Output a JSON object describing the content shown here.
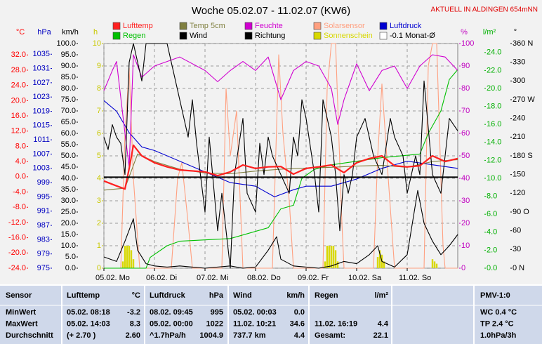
{
  "chart_data": {
    "type": "line",
    "title": "Woche 05.02.07 - 11.02.07 (KW6)",
    "annotation": "AKTUELL IN ALDINGEN 654mNN",
    "xlim": [
      0,
      168
    ],
    "xticks": [
      {
        "value": 0,
        "label": "05.02. Mo"
      },
      {
        "value": 24,
        "label": "06.02. Di"
      },
      {
        "value": 48,
        "label": "07.02. Mi"
      },
      {
        "value": 72,
        "label": "08.02. Do"
      },
      {
        "value": 96,
        "label": "09.02. Fr"
      },
      {
        "value": 120,
        "label": "10.02. Sa"
      },
      {
        "value": 144,
        "label": "11.02. So"
      }
    ],
    "grid": true,
    "axes": [
      {
        "unit": "°C",
        "side": "left",
        "color": "#ff0000",
        "lim": [
          -24,
          35
        ],
        "ticks": [
          {
            "value": 32,
            "label": "32.0"
          },
          {
            "value": 28,
            "label": "28.0"
          },
          {
            "value": 24,
            "label": "24.0"
          },
          {
            "value": 20,
            "label": "20.0"
          },
          {
            "value": 16,
            "label": "16.0"
          },
          {
            "value": 12,
            "label": "12.0"
          },
          {
            "value": 8,
            "label": "8.0"
          },
          {
            "value": 4,
            "label": "4.0"
          },
          {
            "value": 0,
            "label": "0.0"
          },
          {
            "value": -4,
            "label": "-4.0"
          },
          {
            "value": -8,
            "label": "-8.0"
          },
          {
            "value": -12,
            "label": "-12.0"
          },
          {
            "value": -16,
            "label": "-16.0"
          },
          {
            "value": -20,
            "label": "-20.0"
          },
          {
            "value": -24,
            "label": "-24.0"
          }
        ]
      },
      {
        "unit": "hPa",
        "side": "left",
        "color": "#0000c0",
        "lim": [
          975,
          1038
        ],
        "ticks": [
          1035,
          1031,
          1027,
          1023,
          1019,
          1015,
          1011,
          1007,
          1003,
          999,
          995,
          991,
          987,
          983,
          979,
          975
        ]
      },
      {
        "unit": "km/h",
        "side": "left",
        "color": "#000000",
        "lim": [
          0,
          100
        ],
        "ticks": [
          {
            "value": 100,
            "label": "100.0"
          },
          {
            "value": 95,
            "label": "95.0"
          },
          {
            "value": 90,
            "label": "90.0"
          },
          {
            "value": 85,
            "label": "85.0"
          },
          {
            "value": 80,
            "label": "80.0"
          },
          {
            "value": 75,
            "label": "75.0"
          },
          {
            "value": 70,
            "label": "70.0"
          },
          {
            "value": 65,
            "label": "65.0"
          },
          {
            "value": 60,
            "label": "60.0"
          },
          {
            "value": 55,
            "label": "55.0"
          },
          {
            "value": 50,
            "label": "50.0"
          },
          {
            "value": 45,
            "label": "45.0"
          },
          {
            "value": 40,
            "label": "40.0"
          },
          {
            "value": 35,
            "label": "35.0"
          },
          {
            "value": 30,
            "label": "30.0"
          },
          {
            "value": 25,
            "label": "25.0"
          },
          {
            "value": 20,
            "label": "20.0"
          },
          {
            "value": 15,
            "label": "15.0"
          },
          {
            "value": 10,
            "label": "10.0"
          },
          {
            "value": 5,
            "label": "5.0"
          },
          {
            "value": 0,
            "label": "0.0"
          }
        ]
      },
      {
        "unit": "h",
        "side": "left",
        "color": "#c8c800",
        "lim": [
          0,
          10
        ],
        "grid": true,
        "ticks": [
          10,
          9,
          8,
          7,
          6,
          5,
          4,
          3,
          2,
          1,
          0
        ]
      },
      {
        "unit": "%",
        "side": "right",
        "color": "#c000c0",
        "lim": [
          0,
          100
        ],
        "ticks": [
          100,
          90,
          80,
          70,
          60,
          50,
          40,
          30,
          20,
          10,
          0
        ]
      },
      {
        "unit": "l/m²",
        "side": "right",
        "color": "#00b000",
        "lim": [
          0,
          25
        ],
        "ticks": [
          {
            "value": 24,
            "label": "24.0"
          },
          {
            "value": 22,
            "label": "22.0"
          },
          {
            "value": 20,
            "label": "20.0"
          },
          {
            "value": 18,
            "label": "18.0"
          },
          {
            "value": 16,
            "label": "16.0"
          },
          {
            "value": 14,
            "label": "14.0"
          },
          {
            "value": 12,
            "label": "12.0"
          },
          {
            "value": 10,
            "label": "10.0"
          },
          {
            "value": 8,
            "label": "8.0"
          },
          {
            "value": 6,
            "label": "6.0"
          },
          {
            "value": 4,
            "label": "4.0"
          },
          {
            "value": 2,
            "label": "2.0"
          },
          {
            "value": 0,
            "label": "0.0"
          }
        ]
      },
      {
        "unit": "°",
        "side": "right",
        "color": "#000000",
        "lim": [
          0,
          360
        ],
        "ticks": [
          {
            "value": 360,
            "label": "360 N"
          },
          330,
          300,
          {
            "value": 270,
            "label": "270 W"
          },
          240,
          210,
          {
            "value": 180,
            "label": "180 S"
          },
          150,
          120,
          {
            "value": 90,
            "label": "90 O"
          },
          60,
          30,
          {
            "value": 0,
            "label": "0 N"
          }
        ]
      }
    ],
    "series": [
      {
        "name": "Lufttemp",
        "color": "#ff2020",
        "axis": "°C",
        "x": [
          0,
          6,
          10,
          12,
          14,
          18,
          24,
          30,
          36,
          48,
          54,
          60,
          66,
          72,
          78,
          84,
          90,
          96,
          102,
          108,
          114,
          120,
          126,
          132,
          138,
          144,
          150,
          156,
          162,
          168
        ],
        "values": [
          -1.1,
          -2.4,
          -3.2,
          2.2,
          8.3,
          5.5,
          3.7,
          2.6,
          1.8,
          1.3,
          0.3,
          1.3,
          3.1,
          2.2,
          2.6,
          2.7,
          0.7,
          2.2,
          2.6,
          3.1,
          1.1,
          3.7,
          4.8,
          5.5,
          2.9,
          2.6,
          2.9,
          5.5,
          4.0,
          4.8
        ]
      },
      {
        "name": "Temp 5cm",
        "color": "#808040",
        "axis": "°C",
        "x": [
          0,
          10,
          16,
          24,
          36,
          48,
          60,
          72,
          84,
          96,
          108,
          120,
          132,
          144,
          156,
          168
        ],
        "values": [
          -3.5,
          -3.0,
          6.0,
          4.0,
          2.0,
          1.0,
          0.8,
          1.5,
          2.0,
          2.3,
          2.5,
          2.8,
          3.0,
          2.5,
          4.0,
          4.5
        ]
      },
      {
        "name": "Feuchte",
        "color": "#d000d0",
        "axis": "%",
        "x": [
          0,
          4,
          6,
          10,
          12,
          14,
          18,
          24,
          36,
          48,
          54,
          60,
          66,
          72,
          78,
          84,
          90,
          96,
          102,
          108,
          111,
          114,
          120,
          126,
          132,
          138,
          144,
          150,
          156,
          162,
          168
        ],
        "values": [
          79,
          88,
          92,
          60,
          45,
          95,
          85,
          90,
          94,
          88,
          83,
          88,
          92,
          88,
          94,
          75,
          88,
          92,
          90,
          80,
          64,
          75,
          91,
          79,
          88,
          90,
          80,
          90,
          95,
          94,
          88
        ]
      },
      {
        "name": "Solarsensor",
        "color": "#ffa080",
        "axis": "%",
        "x": [
          0,
          8,
          10,
          12,
          14,
          17,
          32,
          35,
          37,
          40,
          42,
          56,
          58,
          60,
          63,
          66,
          80,
          83,
          85,
          88,
          90,
          104,
          106,
          108,
          110,
          113,
          114,
          128,
          130,
          132,
          135,
          138,
          152,
          154,
          156,
          158,
          161,
          162,
          168
        ],
        "values": [
          0,
          0,
          60,
          89,
          40,
          0,
          0,
          40,
          47,
          20,
          0,
          0,
          80,
          50,
          70,
          0,
          0,
          95,
          60,
          30,
          0,
          0,
          80,
          100,
          100,
          20,
          0,
          0,
          50,
          82,
          40,
          0,
          0,
          90,
          100,
          100,
          10,
          0,
          0
        ]
      },
      {
        "name": "Luftdruck",
        "color": "#0000d0",
        "axis": "hPa",
        "x": [
          0,
          6,
          12,
          18,
          24,
          36,
          48,
          60,
          72,
          81,
          90,
          96,
          108,
          120,
          132,
          144,
          156,
          168
        ],
        "values": [
          1022,
          1019,
          1013,
          1009,
          1008,
          1005,
          1002,
          999,
          998,
          995,
          997,
          998,
          998,
          1000,
          1003,
          1005,
          1004,
          1003
        ]
      },
      {
        "name": "Regen",
        "color": "#00c000",
        "axis": "l/m²",
        "x": [
          0,
          20,
          22,
          30,
          36,
          60,
          78,
          84,
          90,
          94,
          100,
          108,
          120,
          132,
          150,
          154,
          160,
          164,
          168
        ],
        "values": [
          0,
          0,
          1.2,
          2.5,
          3.0,
          3.3,
          4.5,
          6.6,
          7.0,
          10.0,
          11.0,
          11.5,
          11.9,
          12.3,
          12.7,
          15.0,
          17.5,
          21.0,
          22.1
        ]
      },
      {
        "name": "Wind",
        "color": "#000000",
        "axis": "km/h",
        "x": [
          0,
          6,
          10,
          14,
          16,
          20,
          24,
          30,
          36,
          42,
          48,
          60,
          66,
          72,
          78,
          82,
          84,
          90,
          96,
          102,
          108,
          114,
          120,
          126,
          130,
          132,
          138,
          144,
          149,
          152,
          156,
          160,
          164,
          168
        ],
        "values": [
          5,
          3,
          12,
          22,
          8,
          2,
          1,
          0.5,
          1,
          0.5,
          0,
          1,
          0,
          0.5,
          8,
          14,
          4,
          1,
          0.5,
          0,
          1,
          3,
          2,
          6,
          10,
          3,
          0.5,
          6,
          34.6,
          20,
          12,
          6,
          10,
          15
        ]
      },
      {
        "name": "Richtung",
        "color": "#000000",
        "axis": "°",
        "x": [
          0,
          2,
          4,
          6,
          8,
          10,
          12,
          14,
          18,
          20,
          24,
          30,
          32,
          36,
          40,
          42,
          44,
          48,
          50,
          54,
          56,
          60,
          62,
          66,
          68,
          72,
          74,
          76,
          78,
          80,
          84,
          88,
          90,
          92,
          94,
          96,
          100,
          102,
          104,
          108,
          110,
          112,
          114,
          116,
          118,
          120,
          124,
          128,
          132,
          136,
          138,
          142,
          144,
          148,
          150,
          152,
          156,
          160,
          162,
          164,
          168
        ],
        "values": [
          210,
          190,
          230,
          210,
          200,
          150,
          330,
          360,
          300,
          360,
          360,
          360,
          330,
          270,
          210,
          270,
          200,
          90,
          210,
          60,
          120,
          0,
          150,
          240,
          120,
          90,
          200,
          150,
          210,
          180,
          150,
          120,
          210,
          180,
          270,
          240,
          150,
          90,
          270,
          210,
          150,
          60,
          150,
          120,
          150,
          210,
          240,
          180,
          150,
          240,
          210,
          180,
          120,
          180,
          150,
          300,
          150,
          120,
          180,
          240,
          220
        ]
      },
      {
        "name": "Sonnenschein",
        "color": "#d8d800",
        "axis": "h",
        "type": "bar",
        "x": [
          9,
          10,
          11,
          12,
          13,
          14,
          105,
          106,
          107,
          108,
          109,
          110,
          111,
          130,
          131,
          132,
          133,
          156,
          157,
          158
        ],
        "values": [
          0.3,
          1,
          1,
          1,
          0.8,
          0.4,
          0.3,
          1,
          1,
          1,
          1,
          0.8,
          0.3,
          0.5,
          0.8,
          0.6,
          0.3,
          0.4,
          0.3,
          0.2
        ]
      },
      {
        "name": "-0.1 Monat-Ø",
        "color": "#000000",
        "box": "#ffffff",
        "axis": "°C",
        "type": "hline",
        "value": -0.1
      }
    ]
  },
  "table": {
    "header": {
      "sensor": "Sensor",
      "temp": [
        "Lufttemp",
        "°C"
      ],
      "press": [
        "Luftdruck",
        "hPa"
      ],
      "wind": [
        "Wind",
        "km/h"
      ],
      "rain": [
        "Regen",
        "l/m²"
      ],
      "pmv": "PMV-1:0"
    },
    "rows": [
      {
        "label": "MinWert",
        "temp": [
          "05.02.  08:18",
          "-3.2"
        ],
        "press": [
          "08.02.  09:45",
          "995"
        ],
        "wind": [
          "05.02.  00:03",
          "0.0"
        ],
        "pmv": "WC 0.4 °C"
      },
      {
        "label": "MaxWert",
        "temp": [
          "05.02.  14:03",
          "8.3"
        ],
        "press": [
          "05.02.  00:00",
          "1022"
        ],
        "wind": [
          "11.02.  10:21",
          "34.6"
        ],
        "rain": [
          "11.02.  16:19",
          "4.4"
        ],
        "pmv": "TP 2.4 °C"
      },
      {
        "label": "Durchschnitt",
        "temp": [
          "(+ 2.70 )",
          "2.60"
        ],
        "press": [
          "^1.7hPa/h",
          "1004.9"
        ],
        "wind": [
          "737.7 km",
          "4.4"
        ],
        "rain": [
          "Gesamt:",
          "22.1"
        ],
        "pmv": "1.0hPa/3h"
      }
    ]
  }
}
